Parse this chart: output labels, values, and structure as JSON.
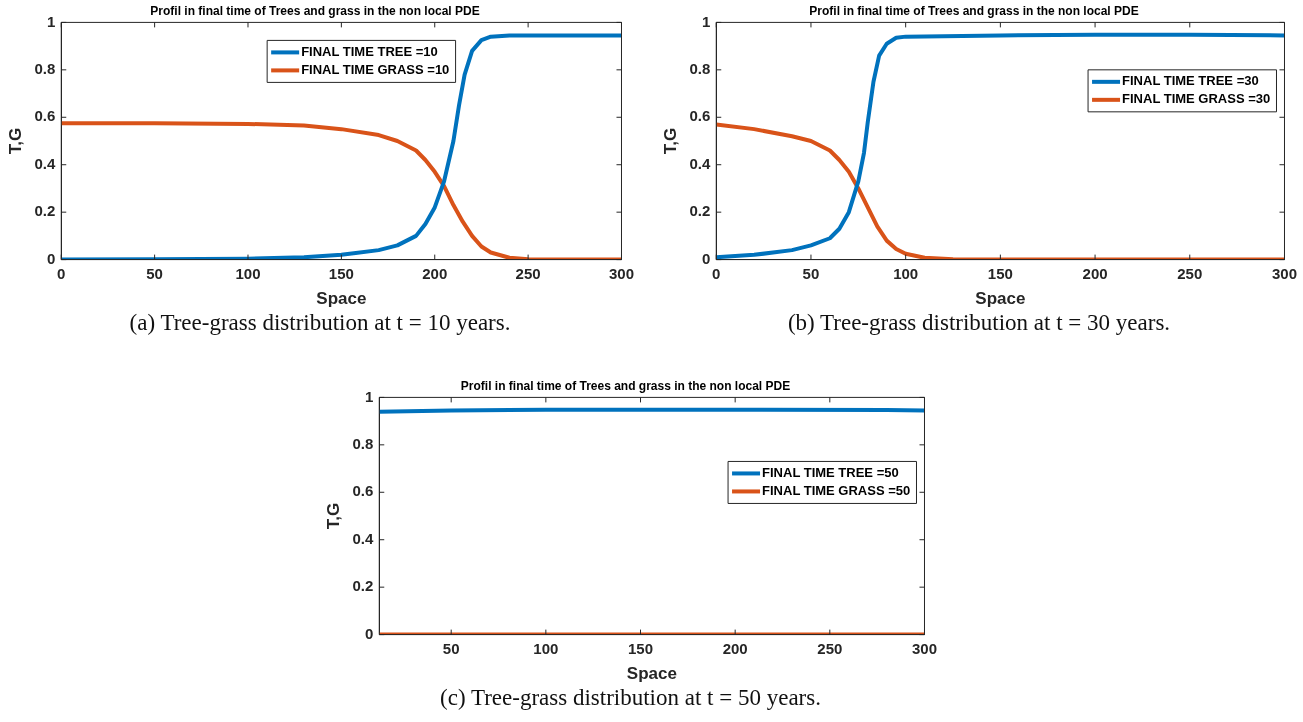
{
  "chart_data": [
    {
      "type": "line",
      "title": "Profil in final time of Trees and grass in the non local PDE",
      "xlabel": "Space",
      "ylabel": "T,G",
      "xlim": [
        0,
        300
      ],
      "xticks": [
        0,
        50,
        100,
        150,
        200,
        250,
        300
      ],
      "ylim": [
        0,
        1
      ],
      "yticks": [
        0,
        0.2,
        0.4,
        0.6,
        0.8,
        1
      ],
      "legend": "top",
      "grid": false,
      "annotations": [
        "(a) Tree-grass distribution at t = 10 years."
      ],
      "series": [
        {
          "name": "FINAL TIME TREE =10",
          "color": "#0072bd",
          "x": [
            0,
            50,
            100,
            130,
            150,
            170,
            180,
            190,
            195,
            200,
            205,
            210,
            213,
            216,
            220,
            225,
            230,
            240,
            300
          ],
          "values": [
            0,
            0.001,
            0.004,
            0.01,
            0.02,
            0.04,
            0.06,
            0.1,
            0.15,
            0.22,
            0.33,
            0.5,
            0.65,
            0.78,
            0.88,
            0.925,
            0.94,
            0.945,
            0.945
          ]
        },
        {
          "name": "FINAL TIME GRASS =10",
          "color": "#d95319",
          "x": [
            0,
            50,
            100,
            130,
            150,
            170,
            180,
            190,
            195,
            200,
            205,
            210,
            215,
            220,
            225,
            230,
            240,
            250,
            300
          ],
          "values": [
            0.575,
            0.575,
            0.572,
            0.565,
            0.55,
            0.525,
            0.5,
            0.46,
            0.42,
            0.37,
            0.31,
            0.23,
            0.16,
            0.1,
            0.055,
            0.03,
            0.008,
            0.001,
            0
          ]
        }
      ]
    },
    {
      "type": "line",
      "title": "Profil in final time of Trees and grass in the non local PDE",
      "xlabel": "Space",
      "ylabel": "T,G",
      "xlim": [
        0,
        300
      ],
      "xticks": [
        0,
        50,
        100,
        150,
        200,
        250,
        300
      ],
      "ylim": [
        0,
        1
      ],
      "yticks": [
        0,
        0.2,
        0.4,
        0.6,
        0.8,
        1
      ],
      "legend": "top right",
      "grid": false,
      "annotations": [
        "(b) Tree-grass distribution at t = 30 years."
      ],
      "series": [
        {
          "name": "FINAL TIME TREE =30",
          "color": "#0072bd",
          "x": [
            0,
            20,
            40,
            50,
            60,
            65,
            70,
            75,
            78,
            80,
            83,
            86,
            90,
            95,
            100,
            150,
            200,
            250,
            300
          ],
          "values": [
            0.01,
            0.02,
            0.04,
            0.06,
            0.09,
            0.13,
            0.2,
            0.33,
            0.45,
            0.58,
            0.75,
            0.86,
            0.91,
            0.935,
            0.94,
            0.945,
            0.948,
            0.948,
            0.945
          ]
        },
        {
          "name": "FINAL TIME GRASS =30",
          "color": "#d95319",
          "x": [
            0,
            20,
            40,
            50,
            60,
            65,
            70,
            75,
            80,
            85,
            90,
            95,
            100,
            110,
            125,
            150,
            300
          ],
          "values": [
            0.57,
            0.55,
            0.52,
            0.5,
            0.46,
            0.42,
            0.37,
            0.3,
            0.22,
            0.14,
            0.08,
            0.045,
            0.025,
            0.008,
            0.002,
            0,
            0
          ]
        }
      ]
    },
    {
      "type": "line",
      "title": "Profil in final time of Trees and grass in the non local PDE",
      "xlabel": "Space",
      "ylabel": "T,G",
      "xlim": [
        12,
        300
      ],
      "xticks": [
        50,
        100,
        150,
        200,
        250,
        300
      ],
      "ylim": [
        0,
        1
      ],
      "yticks": [
        0,
        0.2,
        0.4,
        0.6,
        0.8,
        1
      ],
      "legend": "right",
      "grid": false,
      "annotations": [
        "(c) Tree-grass distribution at t = 50 years."
      ],
      "series": [
        {
          "name": "FINAL TIME TREE =50",
          "color": "#0072bd",
          "x": [
            12,
            50,
            100,
            200,
            280,
            300
          ],
          "values": [
            0.94,
            0.945,
            0.948,
            0.948,
            0.947,
            0.945
          ]
        },
        {
          "name": "FINAL TIME GRASS =50",
          "color": "#d95319",
          "x": [
            12,
            300
          ],
          "values": [
            0,
            0
          ]
        }
      ]
    }
  ]
}
